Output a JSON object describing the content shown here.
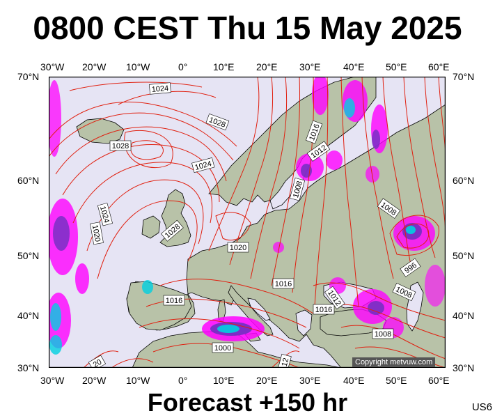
{
  "title": "0800 CEST Thu 15 May 2025",
  "footer": "Forecast +150 hr",
  "code": "US6",
  "copyright": "Copyright metvuw.com",
  "axes": {
    "top_lon": [
      "30°W",
      "20°W",
      "10°W",
      "0°",
      "10°E",
      "20°E",
      "30°E",
      "40°E",
      "50°E",
      "60°E"
    ],
    "bottom_lon": [
      "30°W",
      "20°W",
      "10°W",
      "0°",
      "10°E",
      "20°E",
      "30°E",
      "40°E",
      "50°E",
      "60°E"
    ],
    "left_lat": [
      "70°N",
      "60°N",
      "50°N",
      "40°N",
      "30°N"
    ],
    "right_lat": [
      "70°N",
      "60°N",
      "50°N",
      "40°N",
      "30°N"
    ]
  },
  "colors": {
    "ocean": "#e6e4f4",
    "land": "#b8c2a8",
    "isobar": "#e02010",
    "precip_light": "#ff00ff",
    "precip_med": "#7030c0",
    "precip_heavy": "#00d0e0",
    "coast": "#000000"
  },
  "isobar_labels": [
    {
      "text": "1024"
    },
    {
      "text": "1028"
    },
    {
      "text": "1028"
    },
    {
      "text": "1024"
    },
    {
      "text": "1024"
    },
    {
      "text": "1020"
    },
    {
      "text": "1028"
    },
    {
      "text": "1020"
    },
    {
      "text": "1016"
    },
    {
      "text": "1016"
    },
    {
      "text": "1012"
    },
    {
      "text": "1008"
    },
    {
      "text": "1008"
    },
    {
      "text": "996"
    },
    {
      "text": "1008"
    },
    {
      "text": "1016"
    },
    {
      "text": "1016"
    },
    {
      "text": "1012"
    },
    {
      "text": "1016"
    },
    {
      "text": "1008"
    },
    {
      "text": "1000"
    },
    {
      "text": "20"
    },
    {
      "text": "12"
    }
  ]
}
